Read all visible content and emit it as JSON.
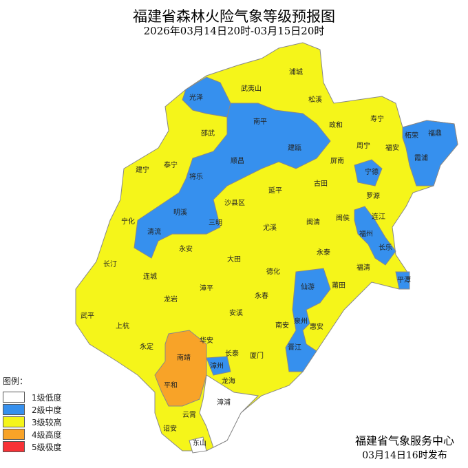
{
  "title": "福建省森林火险气象等级预报图",
  "subtitle": "2026年03月14日20时-03月15日20时",
  "legend": {
    "title": "图例：",
    "items": [
      {
        "label": "1级低度",
        "color": "#ffffff"
      },
      {
        "label": "2级中度",
        "color": "#3690ee"
      },
      {
        "label": "3级较高",
        "color": "#f5f51a"
      },
      {
        "label": "4级高度",
        "color": "#f8a328"
      },
      {
        "label": "5级极度",
        "color": "#f73236"
      }
    ]
  },
  "issuer": {
    "org": "福建省气象服务中心",
    "time": "03月14日16时发布"
  },
  "counties": [
    {
      "name": "浦城",
      "level": 3
    },
    {
      "name": "武夷山",
      "level": 3
    },
    {
      "name": "松溪",
      "level": 3
    },
    {
      "name": "光泽",
      "level": 2
    },
    {
      "name": "政和",
      "level": 3
    },
    {
      "name": "寿宁",
      "level": 3
    },
    {
      "name": "南平",
      "level": 2
    },
    {
      "name": "邵武",
      "level": 3
    },
    {
      "name": "柘荣",
      "level": 2
    },
    {
      "name": "福鼎",
      "level": 2
    },
    {
      "name": "周宁",
      "level": 3
    },
    {
      "name": "福安",
      "level": 3
    },
    {
      "name": "霞浦",
      "level": 2
    },
    {
      "name": "建宁",
      "level": 3
    },
    {
      "name": "泰宁",
      "level": 3
    },
    {
      "name": "顺昌",
      "level": 2
    },
    {
      "name": "建瓯",
      "level": 2
    },
    {
      "name": "屏南",
      "level": 3
    },
    {
      "name": "宁德",
      "level": 2
    },
    {
      "name": "将乐",
      "level": 2
    },
    {
      "name": "古田",
      "level": 3
    },
    {
      "name": "罗源",
      "level": 3
    },
    {
      "name": "延平",
      "level": 3
    },
    {
      "name": "沙县区",
      "level": 3
    },
    {
      "name": "宁化",
      "level": 3
    },
    {
      "name": "明溪",
      "level": 2
    },
    {
      "name": "三明",
      "level": 2
    },
    {
      "name": "尤溪",
      "level": 3
    },
    {
      "name": "闽清",
      "level": 3
    },
    {
      "name": "闽侯",
      "level": 3
    },
    {
      "name": "连江",
      "level": 3
    },
    {
      "name": "福州",
      "level": 2
    },
    {
      "name": "长乐",
      "level": 2
    },
    {
      "name": "清流",
      "level": 2
    },
    {
      "name": "永安",
      "level": 3
    },
    {
      "name": "大田",
      "level": 3
    },
    {
      "name": "永泰",
      "level": 3
    },
    {
      "name": "福清",
      "level": 3
    },
    {
      "name": "平潭",
      "level": 2
    },
    {
      "name": "长汀",
      "level": 3
    },
    {
      "name": "连城",
      "level": 3
    },
    {
      "name": "德化",
      "level": 3
    },
    {
      "name": "仙游",
      "level": 2
    },
    {
      "name": "莆田",
      "level": 3
    },
    {
      "name": "漳平",
      "level": 3
    },
    {
      "name": "龙岩",
      "level": 3
    },
    {
      "name": "永春",
      "level": 3
    },
    {
      "name": "武平",
      "level": 3
    },
    {
      "name": "上杭",
      "level": 3
    },
    {
      "name": "安溪",
      "level": 3
    },
    {
      "name": "南安",
      "level": 3
    },
    {
      "name": "泉州",
      "level": 2
    },
    {
      "name": "惠安",
      "level": 3
    },
    {
      "name": "晋江",
      "level": 2
    },
    {
      "name": "永定",
      "level": 3
    },
    {
      "name": "华安",
      "level": 3
    },
    {
      "name": "长泰",
      "level": 3
    },
    {
      "name": "厦门",
      "level": 3
    },
    {
      "name": "南靖",
      "level": 4
    },
    {
      "name": "漳州",
      "level": 2
    },
    {
      "name": "平和",
      "level": 4
    },
    {
      "name": "龙海",
      "level": 3
    },
    {
      "name": "漳浦",
      "level": 1
    },
    {
      "name": "云霄",
      "level": 3
    },
    {
      "name": "诏安",
      "level": 3
    },
    {
      "name": "东山",
      "level": 1
    }
  ]
}
